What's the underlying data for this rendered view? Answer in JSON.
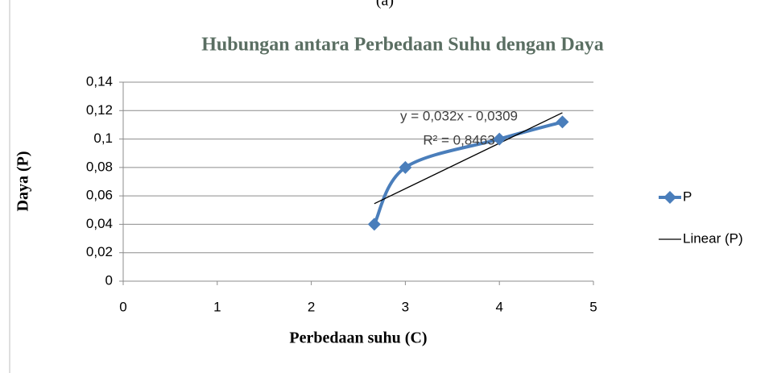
{
  "chart_data": {
    "type": "scatter",
    "caption": "(a)",
    "title": "Hubungan antara Perbedaan Suhu dengan Daya",
    "xlabel": "Perbedaan suhu (C)",
    "ylabel": "Daya (P)",
    "xlim": [
      0,
      5
    ],
    "xticks": [
      0,
      1,
      2,
      3,
      4,
      5
    ],
    "ylim": [
      0,
      0.14
    ],
    "yticks": [
      0,
      {
        "value": 0.02,
        "label": "0,02"
      },
      {
        "value": 0.04,
        "label": "0,04"
      },
      {
        "value": 0.06,
        "label": "0,06"
      },
      {
        "value": 0.08,
        "label": "0,08"
      },
      {
        "value": 0.1,
        "label": "0,1"
      },
      {
        "value": 0.12,
        "label": "0,12"
      },
      {
        "value": 0.14,
        "label": "0,14"
      }
    ],
    "grid": true,
    "legend": "right",
    "series": [
      {
        "name": "P",
        "color": "#4a7ebb",
        "x": [
          2.67,
          3,
          4,
          4.67
        ],
        "values": [
          0.04,
          0.08,
          0.1,
          0.112
        ]
      },
      {
        "name": "Linear (P)",
        "color": "#000000",
        "x": [
          2.67,
          4.67
        ],
        "values": [
          0.0545,
          0.1185
        ]
      }
    ],
    "annotations": [
      "y = 0,032x - 0,0309",
      "R² = 0,8463"
    ]
  }
}
